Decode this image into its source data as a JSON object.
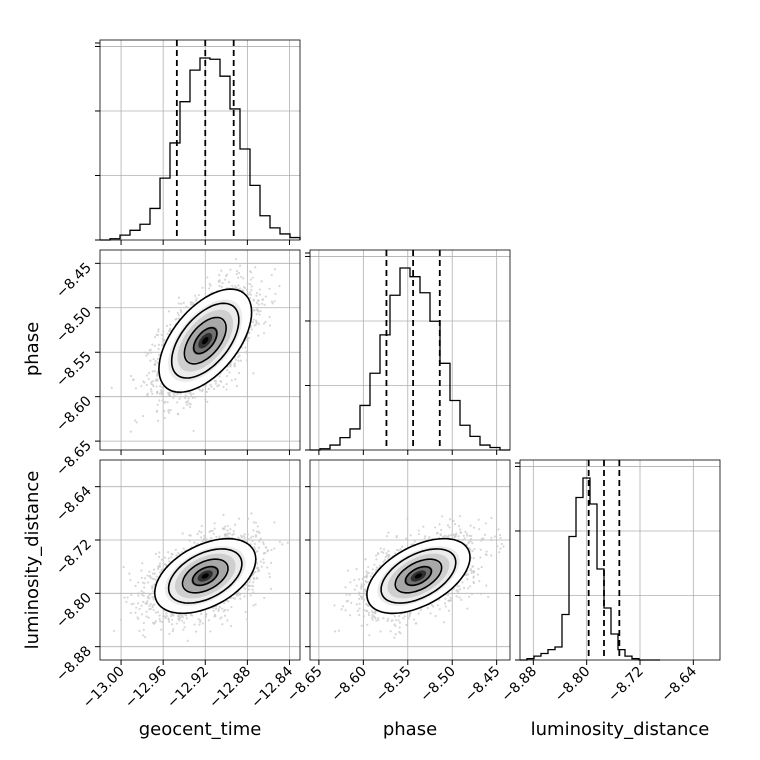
{
  "chart_data": {
    "type": "corner",
    "title": "",
    "parameters": [
      "geocent_time",
      "phase",
      "luminosity_distance"
    ],
    "ranges": {
      "geocent_time": [
        -13.02,
        -12.83
      ],
      "phase": [
        -8.66,
        -8.435
      ],
      "luminosity_distance": [
        -8.9,
        -8.6
      ]
    },
    "ticks": {
      "geocent_time": [
        "−13.00",
        "−12.96",
        "−12.92",
        "−12.88",
        "−12.84"
      ],
      "phase": [
        "−8.65",
        "−8.60",
        "−8.55",
        "−8.50",
        "−8.45"
      ],
      "luminosity_distance": [
        "−8.88",
        "−8.80",
        "−8.72",
        "−8.64"
      ]
    },
    "tick_values": {
      "geocent_time": [
        -13.0,
        -12.96,
        -12.92,
        -12.88,
        -12.84
      ],
      "phase": [
        -8.65,
        -8.6,
        -8.55,
        -8.5,
        -8.45
      ],
      "luminosity_distance": [
        -8.88,
        -8.8,
        -8.72,
        -8.64
      ]
    },
    "quantiles": {
      "geocent_time": [
        -12.947,
        -12.92,
        -12.893
      ],
      "phase": [
        -8.574,
        -8.544,
        -8.514
      ],
      "luminosity_distance": [
        -8.797,
        -8.774,
        -8.751
      ]
    },
    "histograms": {
      "geocent_time": {
        "edges_start": -13.02,
        "bin_width": 0.0095,
        "counts": [
          0,
          1,
          4,
          8,
          13,
          26,
          51,
          80,
          114,
          140,
          150,
          149,
          135,
          108,
          75,
          45,
          20,
          10,
          5,
          2,
          0
        ]
      },
      "phase": {
        "edges_start": -8.66,
        "bin_width": 0.01125,
        "counts": [
          0,
          1,
          4,
          10,
          17,
          36,
          62,
          93,
          125,
          147,
          140,
          127,
          104,
          70,
          40,
          20,
          11,
          4,
          2,
          0
        ]
      },
      "luminosity_distance": {
        "edges_start": -8.9,
        "bin_width": 0.0105,
        "counts": [
          0,
          1,
          3,
          5,
          8,
          10,
          35,
          95,
          125,
          140,
          120,
          70,
          40,
          20,
          8,
          3,
          1,
          0,
          0,
          0
        ]
      }
    },
    "pairs": [
      {
        "x": "geocent_time",
        "y": "phase",
        "mean": [
          -12.92,
          -8.537
        ],
        "sd": [
          0.022,
          0.029
        ],
        "corr": 0.55
      },
      {
        "x": "geocent_time",
        "y": "luminosity_distance",
        "mean": [
          -12.92,
          -8.774
        ],
        "sd": [
          0.024,
          0.028
        ],
        "corr": 0.45
      },
      {
        "x": "phase",
        "y": "luminosity_distance",
        "mean": [
          -8.538,
          -8.774
        ],
        "sd": [
          0.029,
          0.028
        ],
        "corr": 0.5
      }
    ],
    "grid": true,
    "colors": {
      "samples": "#c9c9c9",
      "contour": "#000000",
      "density_dark": "#000000"
    }
  }
}
